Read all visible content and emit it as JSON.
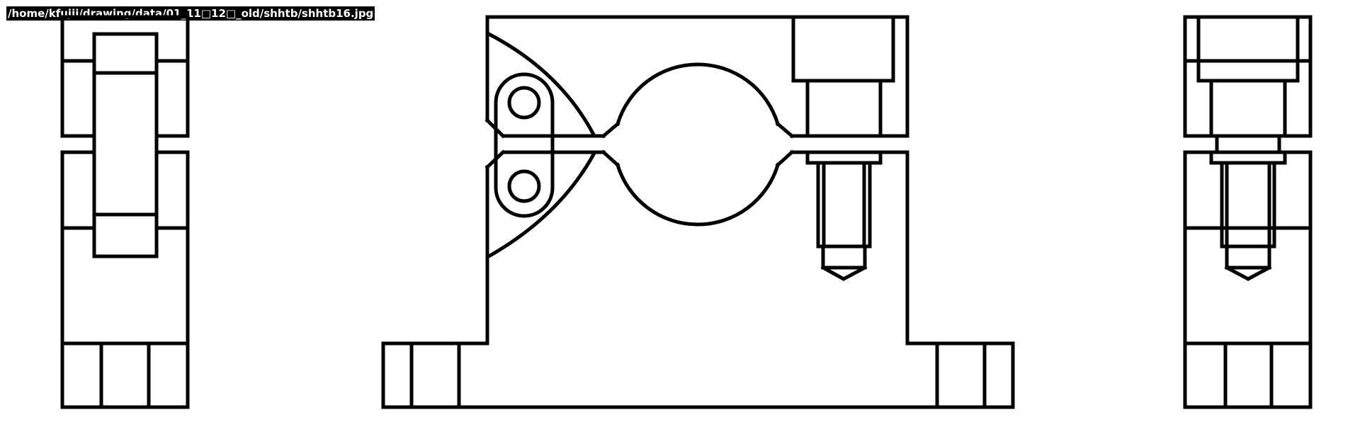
{
  "image": {
    "path_label": "/home/kfujii/drawing/data/01_11□12□_old/shhtb/shhtb16.jpg"
  },
  "colors": {
    "background": "#ffffff",
    "line": "#000000",
    "label_bg": "#000000",
    "label_text": "#ffffff"
  },
  "drawing": {
    "type": "orthographic three-view technical drawing",
    "views": [
      "left-side-view",
      "front-view",
      "right-side-view"
    ]
  }
}
